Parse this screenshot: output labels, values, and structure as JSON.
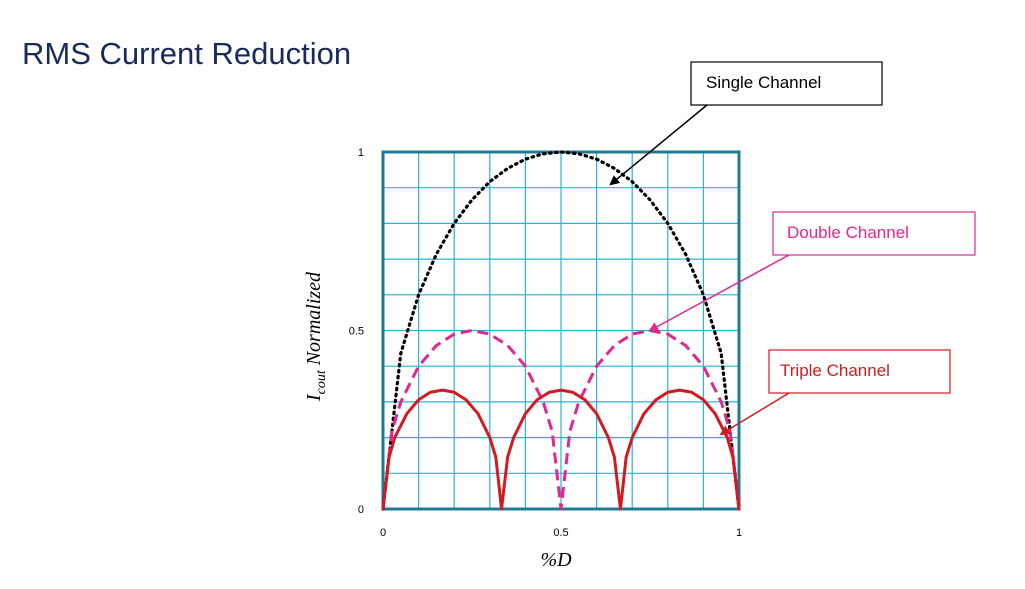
{
  "slide": {
    "title": "RMS Current Reduction"
  },
  "colors": {
    "title": "#1a2a5c",
    "plot_border": "#1f7a94",
    "grid": "#29b3d9",
    "single": "#000000",
    "double": "#e0288f",
    "triple": "#d21a20"
  },
  "chart_data": {
    "type": "line",
    "xlabel": "%D",
    "ylabel_main": "I",
    "ylabel_sub": "cout",
    "ylabel_rest": " Normalized",
    "xlim": [
      0,
      1
    ],
    "ylim": [
      0,
      1
    ],
    "x_ticks": [
      {
        "value": 0,
        "label": "0"
      },
      {
        "value": 0.5,
        "label": "0.5"
      },
      {
        "value": 1,
        "label": "1"
      }
    ],
    "y_ticks": [
      {
        "value": 0,
        "label": "0"
      },
      {
        "value": 0.5,
        "label": "0.5"
      },
      {
        "value": 1,
        "label": "1"
      }
    ],
    "grid": true,
    "grid_divisions": 10,
    "series": [
      {
        "name": "Single Channel",
        "style": "dotted",
        "x": [
          0,
          0.05,
          0.1,
          0.15,
          0.2,
          0.25,
          0.3,
          0.35,
          0.4,
          0.45,
          0.5,
          0.55,
          0.6,
          0.65,
          0.7,
          0.75,
          0.8,
          0.85,
          0.9,
          0.95,
          1
        ],
        "y": [
          0,
          0.436,
          0.6,
          0.714,
          0.8,
          0.866,
          0.917,
          0.954,
          0.98,
          0.995,
          1,
          0.995,
          0.98,
          0.954,
          0.917,
          0.866,
          0.8,
          0.714,
          0.6,
          0.436,
          0
        ]
      },
      {
        "name": "Double Channel",
        "style": "dashed",
        "x": [
          0,
          0.025,
          0.05,
          0.1,
          0.15,
          0.2,
          0.25,
          0.3,
          0.35,
          0.4,
          0.45,
          0.475,
          0.5,
          0.525,
          0.55,
          0.6,
          0.65,
          0.7,
          0.75,
          0.8,
          0.85,
          0.9,
          0.95,
          0.975,
          1
        ],
        "y": [
          0,
          0.218,
          0.3,
          0.4,
          0.458,
          0.49,
          0.5,
          0.49,
          0.458,
          0.4,
          0.3,
          0.218,
          0,
          0.218,
          0.3,
          0.4,
          0.458,
          0.49,
          0.5,
          0.49,
          0.458,
          0.4,
          0.3,
          0.218,
          0
        ]
      },
      {
        "name": "Triple Channel",
        "style": "solid",
        "x": [
          0,
          0.017,
          0.033,
          0.067,
          0.1,
          0.133,
          0.167,
          0.2,
          0.233,
          0.267,
          0.3,
          0.317,
          0.333,
          0.35,
          0.367,
          0.4,
          0.433,
          0.467,
          0.5,
          0.533,
          0.567,
          0.6,
          0.633,
          0.65,
          0.667,
          0.683,
          0.7,
          0.733,
          0.767,
          0.8,
          0.833,
          0.867,
          0.9,
          0.933,
          0.967,
          0.983,
          1
        ],
        "y": [
          0,
          0.145,
          0.2,
          0.267,
          0.306,
          0.327,
          0.333,
          0.327,
          0.306,
          0.267,
          0.2,
          0.145,
          0,
          0.145,
          0.2,
          0.267,
          0.306,
          0.327,
          0.333,
          0.327,
          0.306,
          0.267,
          0.2,
          0.145,
          0,
          0.145,
          0.2,
          0.267,
          0.306,
          0.327,
          0.333,
          0.327,
          0.306,
          0.267,
          0.2,
          0.145,
          0
        ]
      }
    ],
    "annotations": [
      {
        "text": "Single Channel",
        "series": 0,
        "arrow_to": {
          "x": 0.64,
          "y": 0.91
        }
      },
      {
        "text": "Double Channel",
        "series": 1,
        "arrow_to": {
          "x": 0.75,
          "y": 0.5
        }
      },
      {
        "text": "Triple Channel",
        "series": 2,
        "arrow_to": {
          "x": 0.95,
          "y": 0.21
        }
      }
    ]
  }
}
